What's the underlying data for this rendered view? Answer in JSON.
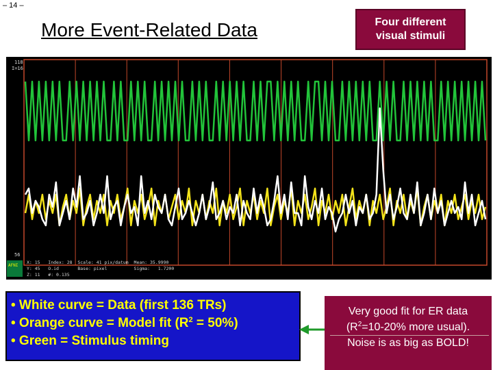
{
  "slide": {
    "page_number": "– 14 –",
    "title": "More Event-Related Data",
    "stim_box": {
      "line1": "Four different",
      "line2": "visual stimuli"
    }
  },
  "plot": {
    "ymax_label": "118",
    "index_label": "I=16",
    "ymin_label": "56",
    "status_rows": [
      "X: 15   Index: 28  Scale: 41 pix/datum  Mean: 35.9990",
      "Y: 45   O.id       Base: pixel          Sigma:   1.7200",
      "Z: 11   #: 0.135"
    ],
    "logo_text": "AFNI"
  },
  "chart_data": {
    "type": "line",
    "title": "",
    "xlabel": "",
    "ylabel": "",
    "grid": true,
    "colors": {
      "data": "#ffffff",
      "model": "#f2e21a",
      "stimulus": "#22c43a",
      "gridline": "#c4482a"
    },
    "stimulus": {
      "x": [
        0,
        1,
        2,
        3,
        4,
        5,
        6,
        7,
        8,
        9,
        10,
        11,
        12,
        13,
        14,
        15,
        16,
        17,
        18,
        19,
        20,
        21,
        22,
        23,
        24,
        25,
        26,
        27,
        28,
        29,
        30,
        31,
        32,
        33,
        34,
        35,
        36,
        37,
        38,
        39,
        40,
        41,
        42,
        43,
        44,
        45,
        46,
        47,
        48,
        49,
        50,
        51,
        52,
        53,
        54,
        55,
        56,
        57,
        58,
        59,
        60,
        61,
        62,
        63,
        64,
        65,
        66,
        67,
        68,
        69,
        70,
        71,
        72,
        73,
        74,
        75,
        76,
        77,
        78,
        79,
        80,
        81,
        82,
        83,
        84,
        85,
        86,
        87,
        88,
        89,
        90,
        91,
        92,
        93,
        94,
        95,
        96,
        97,
        98,
        99,
        100,
        101,
        102,
        103,
        104,
        105,
        106,
        107,
        108,
        109,
        110,
        111,
        112,
        113,
        114,
        115,
        116,
        117,
        118,
        119,
        120,
        121,
        122,
        123,
        124,
        125,
        126,
        127,
        128,
        129,
        130,
        131,
        132,
        133,
        134,
        135
      ],
      "values": [
        1,
        0,
        1,
        0,
        1,
        0,
        1,
        0,
        1,
        0,
        1,
        0,
        0,
        1,
        0,
        1,
        0,
        1,
        0,
        1,
        0,
        1,
        0,
        1,
        0,
        0,
        1,
        0,
        1,
        0,
        0,
        1,
        0,
        1,
        0,
        1,
        0,
        0,
        1,
        0,
        1,
        0,
        1,
        0,
        1,
        0,
        1,
        0,
        0,
        1,
        0,
        1,
        0,
        1,
        0,
        0,
        1,
        0,
        1,
        0,
        1,
        0,
        1,
        0,
        1,
        0,
        0,
        1,
        0,
        1,
        0,
        1,
        1,
        0,
        1,
        0,
        1,
        0,
        1,
        0,
        1,
        0,
        0,
        1,
        0,
        1,
        1,
        0,
        1,
        0,
        1,
        0,
        0,
        1,
        0,
        1,
        0,
        1,
        0,
        1,
        0,
        1,
        0,
        0,
        1,
        0,
        1,
        0,
        1,
        0,
        0,
        1,
        0,
        1,
        0,
        1,
        0,
        1,
        0,
        1,
        0,
        0,
        1,
        0,
        1,
        0,
        1,
        0,
        1,
        0,
        1,
        0,
        1,
        0,
        1,
        0
      ]
    },
    "series": [
      {
        "values": [
          41,
          42,
          38,
          40,
          39,
          37,
          36,
          41,
          39,
          43,
          36,
          38,
          40,
          37,
          42,
          39,
          44,
          37,
          38,
          40,
          36,
          38,
          41,
          38,
          44,
          37,
          39,
          40,
          36,
          39,
          41,
          38,
          39,
          36,
          44,
          38,
          40,
          37,
          41,
          39,
          38,
          41,
          37,
          36,
          39,
          42,
          37,
          38,
          40,
          38,
          36,
          38,
          41,
          37,
          39,
          43,
          37,
          38,
          40,
          37,
          39,
          38,
          41,
          36,
          40,
          38,
          37,
          42,
          38,
          41,
          39,
          36,
          37,
          40,
          44,
          38,
          41,
          37,
          43,
          38,
          38,
          36,
          44,
          39,
          37,
          40,
          38,
          42,
          37,
          39,
          38,
          35,
          37,
          38,
          41,
          38,
          40,
          36,
          39,
          38,
          41,
          37,
          38,
          41,
          55,
          45,
          38,
          41,
          37,
          39,
          42,
          38,
          37,
          41,
          38,
          43,
          36,
          38,
          41,
          37,
          42,
          38,
          40,
          36,
          38,
          40,
          38,
          39,
          37,
          43,
          38,
          41,
          36,
          38,
          40,
          37
        ]
      },
      {
        "values": [
          38,
          41,
          37,
          40,
          38,
          41,
          37,
          40,
          38,
          41,
          36,
          39,
          41,
          37,
          40,
          38,
          42,
          36,
          39,
          41,
          37,
          40,
          38,
          41,
          36,
          40,
          38,
          41,
          37,
          39,
          42,
          36,
          40,
          38,
          41,
          37,
          39,
          42,
          36,
          40,
          38,
          41,
          37,
          39,
          41,
          37,
          40,
          38,
          42,
          36,
          40,
          38,
          41,
          37,
          40,
          38,
          42,
          36,
          40,
          38,
          41,
          37,
          39,
          42,
          36,
          40,
          38,
          41,
          37,
          40,
          38,
          42,
          36,
          39,
          41,
          37,
          40,
          38,
          42,
          36,
          40,
          38,
          41,
          37,
          39,
          42,
          36,
          40,
          38,
          41,
          37,
          40,
          38,
          41,
          36,
          39,
          42,
          37,
          40,
          38,
          41,
          36,
          40,
          38,
          41,
          37,
          39,
          42,
          36,
          40,
          38,
          41,
          37,
          40,
          38,
          42,
          36,
          39,
          41,
          37,
          40,
          38,
          41,
          36,
          40,
          38,
          41,
          37,
          39,
          41,
          37,
          40,
          38,
          41,
          37,
          39
        ]
      }
    ]
  },
  "bullets": [
    {
      "lead": "• White curve = Data (first 136 TRs)",
      "after": ""
    },
    {
      "lead": "• Orange curve = Model fit (R",
      "sup": "2",
      "after": " = 50%)"
    },
    {
      "lead": "• Green = Stimulus timing",
      "after": ""
    }
  ],
  "note": {
    "line1": "Very good fit  for ER data",
    "line2_a": "(R",
    "line2_sup": "2",
    "line2_b": "=10-20% more usual).",
    "line3": "Noise is as big as BOLD!"
  }
}
